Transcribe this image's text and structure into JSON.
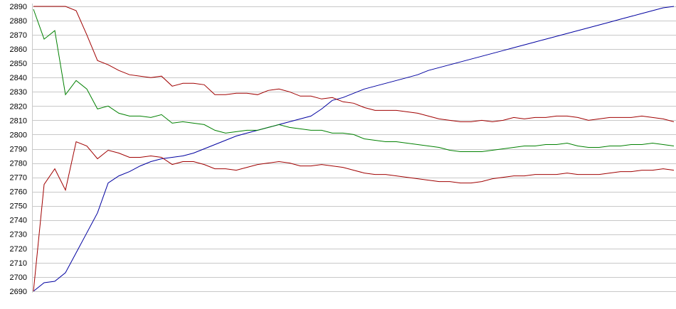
{
  "chart_data": {
    "type": "line",
    "x": [
      0,
      1,
      2,
      3,
      4,
      5,
      6,
      7,
      8,
      9,
      10,
      11,
      12,
      13,
      14,
      15,
      16,
      17,
      18,
      19,
      20,
      21,
      22,
      23,
      24,
      25,
      26,
      27,
      28,
      29,
      30,
      31,
      32,
      33,
      34,
      35,
      36,
      37,
      38,
      39,
      40,
      41,
      42,
      43,
      44,
      45,
      46,
      47,
      48,
      49,
      50,
      51,
      52,
      53,
      54,
      55,
      56,
      57,
      58,
      59,
      60
    ],
    "xlim": [
      0,
      60
    ],
    "ylim": [
      2690,
      2890
    ],
    "yticks": [
      2690,
      2700,
      2710,
      2720,
      2730,
      2740,
      2750,
      2760,
      2770,
      2780,
      2790,
      2800,
      2810,
      2820,
      2830,
      2840,
      2850,
      2860,
      2870,
      2880,
      2890
    ],
    "grid": true,
    "series": [
      {
        "color": "#0000a0",
        "values": [
          2690,
          2696,
          2697,
          2703,
          2717,
          2731,
          2745,
          2766,
          2771,
          2774,
          2778,
          2781,
          2783,
          2784,
          2785,
          2787,
          2790,
          2793,
          2796,
          2799,
          2801,
          2803,
          2805,
          2807,
          2809,
          2811,
          2813,
          2818,
          2824,
          2826,
          2829,
          2832,
          2834,
          2836,
          2838,
          2840,
          2842,
          2845,
          2847,
          2849,
          2851,
          2853,
          2855,
          2857,
          2859,
          2861,
          2863,
          2865,
          2867,
          2869,
          2871,
          2873,
          2875,
          2877,
          2879,
          2881,
          2883,
          2885,
          2887,
          2889,
          2890
        ]
      },
      {
        "color": "#a00000",
        "values": [
          2890,
          2890,
          2890,
          2890,
          2887,
          2870,
          2852,
          2849,
          2845,
          2842,
          2841,
          2840,
          2841,
          2834,
          2836,
          2836,
          2835,
          2828,
          2828,
          2829,
          2829,
          2828,
          2831,
          2832,
          2830,
          2827,
          2827,
          2825,
          2826,
          2823,
          2822,
          2819,
          2817,
          2817,
          2817,
          2816,
          2815,
          2813,
          2811,
          2810,
          2809,
          2809,
          2810,
          2809,
          2810,
          2812,
          2811,
          2812,
          2812,
          2813,
          2813,
          2812,
          2810,
          2811,
          2812,
          2812,
          2812,
          2813,
          2812,
          2811,
          2809
        ]
      },
      {
        "color": "#008000",
        "values": [
          2888,
          2867,
          2873,
          2828,
          2838,
          2832,
          2818,
          2820,
          2815,
          2813,
          2813,
          2812,
          2814,
          2808,
          2809,
          2808,
          2807,
          2803,
          2801,
          2802,
          2803,
          2803,
          2805,
          2807,
          2805,
          2804,
          2803,
          2803,
          2801,
          2801,
          2800,
          2797,
          2796,
          2795,
          2795,
          2794,
          2793,
          2792,
          2791,
          2789,
          2788,
          2788,
          2788,
          2789,
          2790,
          2791,
          2792,
          2792,
          2793,
          2793,
          2794,
          2792,
          2791,
          2791,
          2792,
          2792,
          2793,
          2793,
          2794,
          2793,
          2792
        ]
      },
      {
        "color": "#a00000",
        "values": [
          2690,
          2765,
          2776,
          2761,
          2795,
          2792,
          2783,
          2789,
          2787,
          2784,
          2784,
          2785,
          2784,
          2779,
          2781,
          2781,
          2779,
          2776,
          2776,
          2775,
          2777,
          2779,
          2780,
          2781,
          2780,
          2778,
          2778,
          2779,
          2778,
          2777,
          2775,
          2773,
          2772,
          2772,
          2771,
          2770,
          2769,
          2768,
          2767,
          2767,
          2766,
          2766,
          2767,
          2769,
          2770,
          2771,
          2771,
          2772,
          2772,
          2772,
          2773,
          2772,
          2772,
          2772,
          2773,
          2774,
          2774,
          2775,
          2775,
          2776,
          2775
        ]
      }
    ]
  }
}
